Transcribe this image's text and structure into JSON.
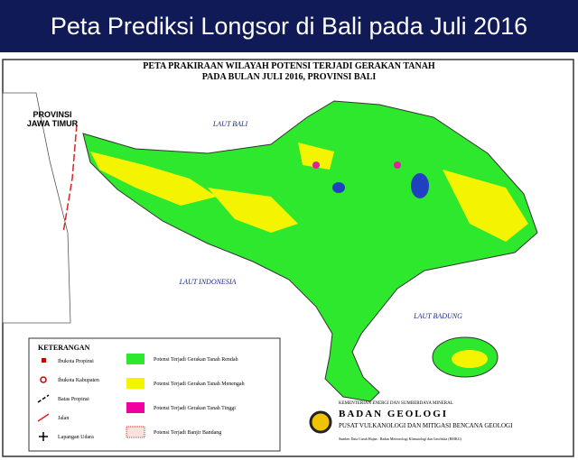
{
  "header": {
    "title": "Peta Prediksi Longsor di Bali pada Juli 2016"
  },
  "map": {
    "title": [
      "PETA PRAKIRAAN WILAYAH POTENSI TERJADI GERAKAN TANAH",
      "PADA BULAN JULI 2016, PROVINSI BALI"
    ],
    "labels": {
      "province": [
        "PROVINSI",
        "JAWA TIMUR"
      ],
      "north_sea": "LAUT BALI",
      "south_sea": "LAUT INDONESIA",
      "east_sea": "LAUT BADUNG"
    }
  },
  "legend": {
    "title": "KETERANGAN",
    "symbols": [
      "Ibukota Propinsi",
      "Ibukota Kabupaten",
      "Batas Propinsi",
      "Jalan",
      "Lapangan Udara"
    ],
    "classes": [
      "Potensi Terjadi Gerakan Tanah Rendah",
      "Potensi Terjadi Gerakan Tanah Menengah",
      "Potensi Terjadi Gerakan Tanah Tinggi",
      "Potensi Terjadi Banjir Bandang"
    ]
  },
  "agency": {
    "ministry": "KEMENTERIAN ENERGI DAN SUMBERDAYA MINERAL",
    "name": "BADAN GEOLOGI",
    "center": "PUSAT VULKANOLOGI DAN MITIGASI BENCANA GEOLOGI",
    "source": "Sumber Data Curah Hujan : Badan Meteorologi Klimatologi dan Geofisika (BMKG)"
  }
}
